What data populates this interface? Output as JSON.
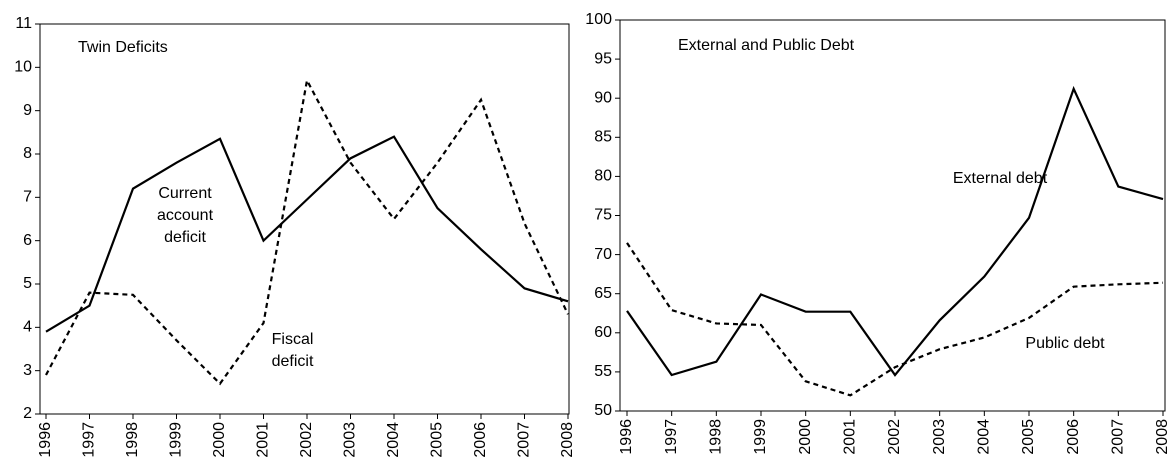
{
  "chart_data": [
    {
      "type": "line",
      "title": "Twin Deficits",
      "categories": [
        "1996",
        "1997",
        "1998",
        "1999",
        "2000",
        "2001",
        "2002",
        "2003",
        "2004",
        "2005",
        "2006",
        "2007",
        "2008"
      ],
      "series": [
        {
          "name": "Current account deficit",
          "color": "#000000",
          "dash": false,
          "values": [
            3.9,
            4.5,
            7.2,
            7.8,
            8.35,
            6.0,
            6.95,
            7.9,
            8.4,
            6.75,
            5.8,
            4.9,
            4.6
          ]
        },
        {
          "name": "Fiscal deficit",
          "color": "#000000",
          "dash": true,
          "values": [
            2.9,
            4.8,
            4.75,
            3.7,
            2.7,
            4.1,
            9.7,
            7.8,
            6.5,
            7.8,
            9.25,
            6.4,
            4.3
          ]
        }
      ],
      "ylim": [
        2,
        11
      ],
      "yticks": [
        2,
        3,
        4,
        5,
        6,
        7,
        8,
        9,
        10,
        11
      ]
    },
    {
      "type": "line",
      "title": "External and Public Debt",
      "categories": [
        "1996",
        "1997",
        "1998",
        "1999",
        "2000",
        "2001",
        "2002",
        "2003",
        "2004",
        "2005",
        "2006",
        "2007",
        "2008"
      ],
      "series": [
        {
          "name": "External debt",
          "color": "#000000",
          "dash": false,
          "values": [
            62.8,
            54.6,
            56.3,
            64.9,
            62.7,
            62.7,
            54.6,
            61.6,
            67.2,
            74.7,
            91.2,
            78.7,
            77.1
          ]
        },
        {
          "name": "Public debt",
          "color": "#000000",
          "dash": true,
          "values": [
            71.5,
            62.9,
            61.2,
            61.0,
            53.8,
            52.0,
            55.6,
            57.9,
            59.4,
            61.9,
            65.9,
            66.2,
            66.4
          ]
        }
      ],
      "ylim": [
        50,
        100
      ],
      "yticks": [
        50,
        55,
        60,
        65,
        70,
        75,
        80,
        85,
        90,
        95,
        100
      ]
    }
  ]
}
